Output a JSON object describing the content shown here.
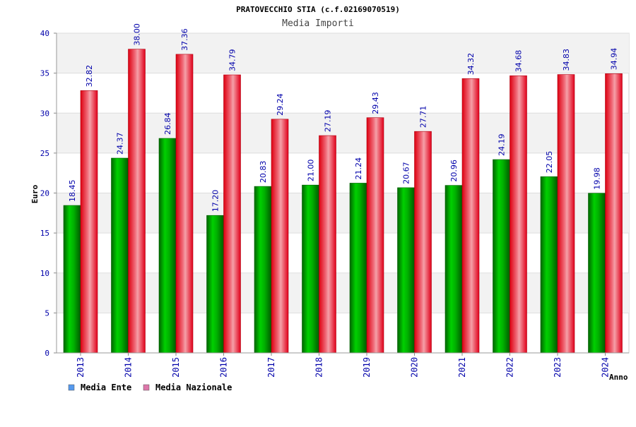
{
  "chart_data": {
    "type": "bar",
    "title": "PRATOVECCHIO STIA (c.f.02169070519)",
    "subtitle": "Media Importi",
    "xlabel": "Anno",
    "ylabel": "Euro",
    "ylim": [
      0,
      40
    ],
    "yticks": [
      0,
      5,
      10,
      15,
      20,
      25,
      30,
      35,
      40
    ],
    "grid": true,
    "legend_position": "bottom-left",
    "categories": [
      "2013",
      "2014",
      "2015",
      "2016",
      "2017",
      "2018",
      "2019",
      "2020",
      "2021",
      "2022",
      "2023",
      "2024"
    ],
    "series": [
      {
        "name": "Media Ente",
        "color": "#00a000",
        "legend_color": "#5599ee",
        "values": [
          18.45,
          24.37,
          26.84,
          17.2,
          20.83,
          21.0,
          21.24,
          20.67,
          20.96,
          24.19,
          22.05,
          19.98
        ],
        "labels": [
          "18.45",
          "24.37",
          "26.84",
          "17.20",
          "20.83",
          "21.00",
          "21.24",
          "20.67",
          "20.96",
          "24.19",
          "22.05",
          "19.98"
        ]
      },
      {
        "name": "Media Nazionale",
        "color": "#e8001c",
        "legend_color": "#dd77aa",
        "values": [
          32.82,
          38.0,
          37.36,
          34.79,
          29.24,
          27.19,
          29.43,
          27.71,
          34.32,
          34.68,
          34.83,
          34.94
        ],
        "labels": [
          "32.82",
          "38.00",
          "37.36",
          "34.79",
          "29.24",
          "27.19",
          "29.43",
          "27.71",
          "34.32",
          "34.68",
          "34.83",
          "34.94"
        ]
      }
    ]
  }
}
